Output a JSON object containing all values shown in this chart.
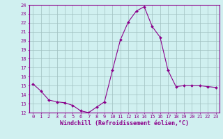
{
  "x": [
    0,
    1,
    2,
    3,
    4,
    5,
    6,
    7,
    8,
    9,
    10,
    11,
    12,
    13,
    14,
    15,
    16,
    17,
    18,
    19,
    20,
    21,
    22,
    23
  ],
  "y": [
    15.2,
    14.4,
    13.4,
    13.2,
    13.1,
    12.8,
    12.2,
    12.0,
    12.6,
    13.2,
    16.7,
    20.1,
    22.1,
    23.3,
    23.8,
    21.6,
    20.4,
    16.7,
    14.9,
    15.0,
    15.0,
    15.0,
    14.9,
    14.8
  ],
  "line_color": "#8B008B",
  "marker": "D",
  "marker_size": 2.0,
  "bg_color": "#d0f0f0",
  "grid_color": "#a0c0c0",
  "xlabel": "Windchill (Refroidissement éolien,°C)",
  "xlabel_color": "#8B008B",
  "ylim": [
    12,
    24
  ],
  "xlim_min": -0.5,
  "xlim_max": 23.5,
  "yticks": [
    12,
    13,
    14,
    15,
    16,
    17,
    18,
    19,
    20,
    21,
    22,
    23,
    24
  ],
  "xticks": [
    0,
    1,
    2,
    3,
    4,
    5,
    6,
    7,
    8,
    9,
    10,
    11,
    12,
    13,
    14,
    15,
    16,
    17,
    18,
    19,
    20,
    21,
    22,
    23
  ],
  "tick_color": "#8B008B",
  "tick_fontsize": 5.0,
  "xlabel_fontsize": 6.0,
  "spine_color": "#8B008B"
}
